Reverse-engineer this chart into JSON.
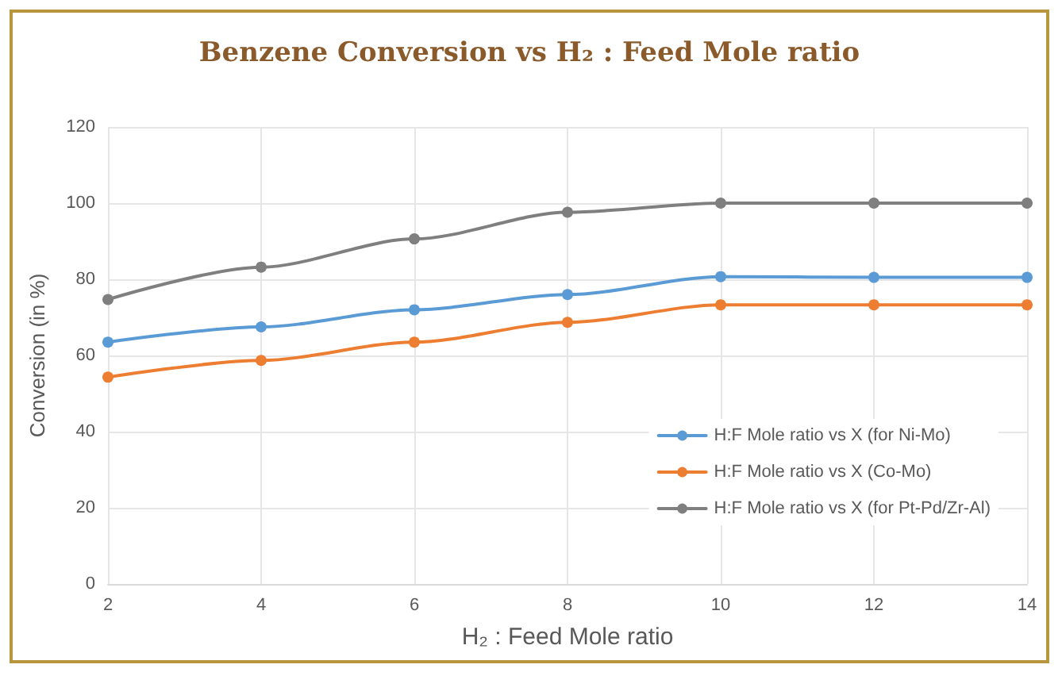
{
  "chart_data": {
    "type": "line",
    "title": "Benzene Conversion vs H₂ : Feed Mole ratio",
    "xlabel": "H₂ : Feed Mole ratio",
    "ylabel": "Conversion (in %)",
    "x": [
      2,
      4,
      6,
      8,
      10,
      12,
      14
    ],
    "series": [
      {
        "name": "H:F Mole ratio vs X (for Ni-Mo)",
        "color": "#5b9bd5",
        "values": [
          63.5,
          67.5,
          72,
          76,
          80.7,
          80.5,
          80.5
        ]
      },
      {
        "name": "H:F Mole ratio vs X (Co-Mo)",
        "color": "#ed7d31",
        "values": [
          54.3,
          58.7,
          63.5,
          68.7,
          73.3,
          73.3,
          73.3
        ]
      },
      {
        "name": "H:F Mole ratio vs X (for Pt-Pd/Zr-Al)",
        "color": "#7f7f7f",
        "values": [
          74.7,
          83.2,
          90.6,
          97.6,
          100,
          100,
          100
        ]
      }
    ],
    "xlim": [
      2,
      14
    ],
    "xticks": [
      2,
      4,
      6,
      8,
      10,
      12,
      14
    ],
    "ylim": [
      0,
      120
    ],
    "yticks": [
      0,
      20,
      40,
      60,
      80,
      100,
      120
    ],
    "grid": true,
    "legend": "bottom right",
    "marker": "circle",
    "line_style": "solid"
  }
}
